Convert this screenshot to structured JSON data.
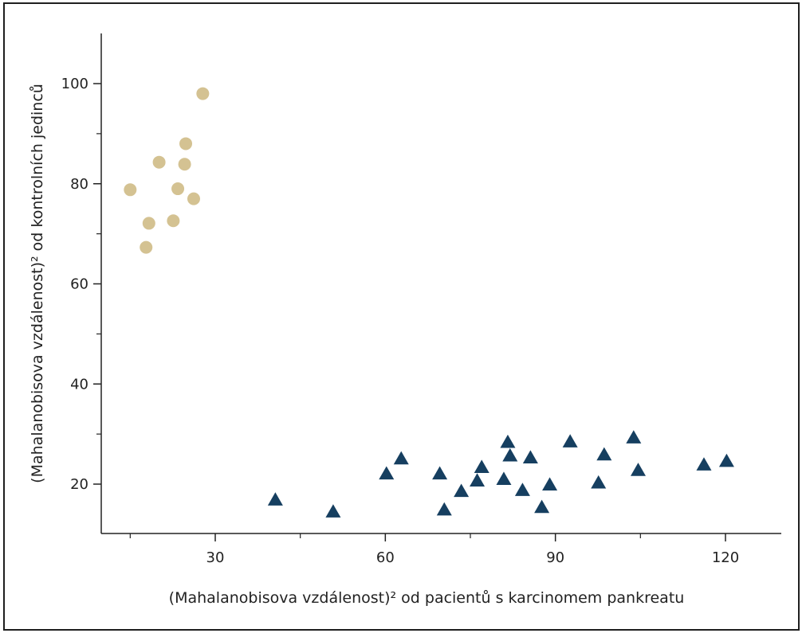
{
  "chart_data": {
    "type": "scatter",
    "xlabel": "(Mahalanobisova vzdálenost)² od pacientů s karcinomem pankreatu",
    "ylabel": "(Mahalanobisova vzdálenost)² od kontrolních jedinců",
    "xlim": [
      10,
      130
    ],
    "ylim": [
      10,
      110
    ],
    "xticks": [
      30,
      60,
      90,
      120
    ],
    "yticks": [
      20,
      40,
      60,
      80,
      100
    ],
    "grid": false,
    "series": [
      {
        "marker": "circle",
        "color": "#d4c292",
        "points": [
          [
            15.0,
            78.8
          ],
          [
            17.8,
            67.3
          ],
          [
            18.3,
            72.1
          ],
          [
            20.1,
            84.3
          ],
          [
            22.6,
            72.6
          ],
          [
            23.4,
            79.0
          ],
          [
            24.6,
            83.9
          ],
          [
            24.8,
            88.0
          ],
          [
            26.2,
            77.0
          ],
          [
            27.8,
            98.0
          ]
        ]
      },
      {
        "marker": "triangle",
        "color": "#163f60",
        "points": [
          [
            40.6,
            16.8
          ],
          [
            50.8,
            14.4
          ],
          [
            60.2,
            22.0
          ],
          [
            62.8,
            25.0
          ],
          [
            69.6,
            22.0
          ],
          [
            70.4,
            14.8
          ],
          [
            73.4,
            18.5
          ],
          [
            76.2,
            20.6
          ],
          [
            77.0,
            23.3
          ],
          [
            80.9,
            20.9
          ],
          [
            81.6,
            28.3
          ],
          [
            82.0,
            25.6
          ],
          [
            84.2,
            18.7
          ],
          [
            85.6,
            25.2
          ],
          [
            87.6,
            15.3
          ],
          [
            89.0,
            19.8
          ],
          [
            92.6,
            28.4
          ],
          [
            97.6,
            20.2
          ],
          [
            98.6,
            25.8
          ],
          [
            103.8,
            29.2
          ],
          [
            104.6,
            22.7
          ],
          [
            116.2,
            23.8
          ],
          [
            120.2,
            24.5
          ]
        ]
      }
    ]
  }
}
